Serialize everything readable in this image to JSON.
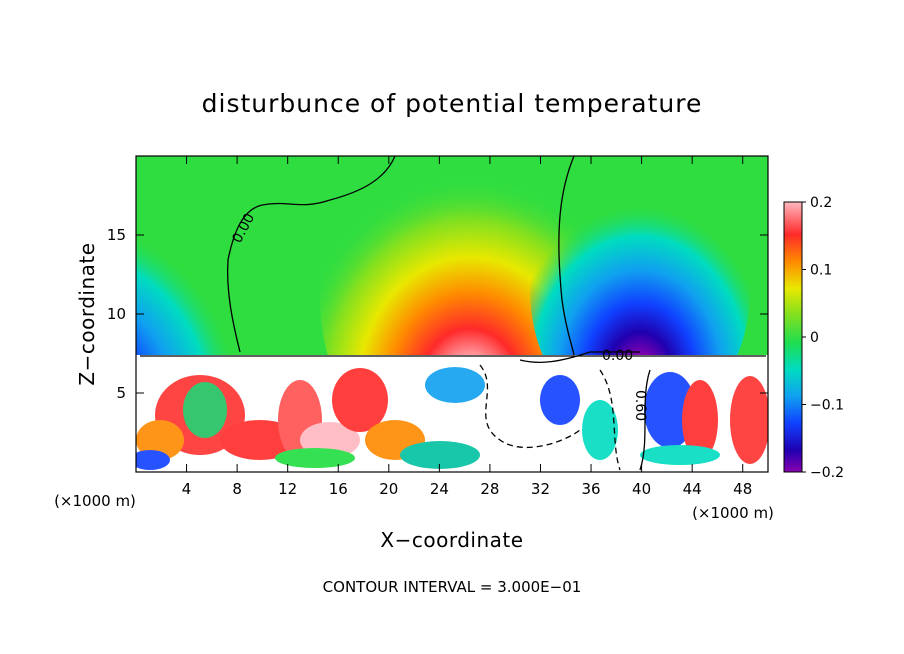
{
  "chart_data": {
    "type": "heatmap",
    "title": "disturbunce of potential temperature",
    "xlabel": "X−coordinate",
    "ylabel": "Z−coordinate",
    "x_unit_label": "(×1000 m)",
    "z_unit_label": "(×1000 m)",
    "footer": "CONTOUR INTERVAL = 3.000E−01",
    "xlim": [
      0,
      50
    ],
    "ylim": [
      0,
      20
    ],
    "x_ticks": [
      4,
      8,
      12,
      16,
      20,
      24,
      28,
      32,
      36,
      40,
      44,
      48
    ],
    "y_ticks": [
      5,
      10,
      15
    ],
    "contour_labels": [
      "0.00",
      "0.00",
      "0.60"
    ],
    "colorbar": {
      "range": [
        -0.2,
        0.2
      ],
      "ticks": [
        "0.2",
        "0.1",
        "0",
        "−0.1",
        "−0.2"
      ]
    },
    "colors": {
      "warm_high": "#ffb0b8",
      "warm": "#ff2020",
      "mid_warm": "#ff9900",
      "neutral": "#40dd40",
      "cool": "#00d0d0",
      "cold": "#0033ee",
      "cold_low": "#8000b0"
    }
  }
}
